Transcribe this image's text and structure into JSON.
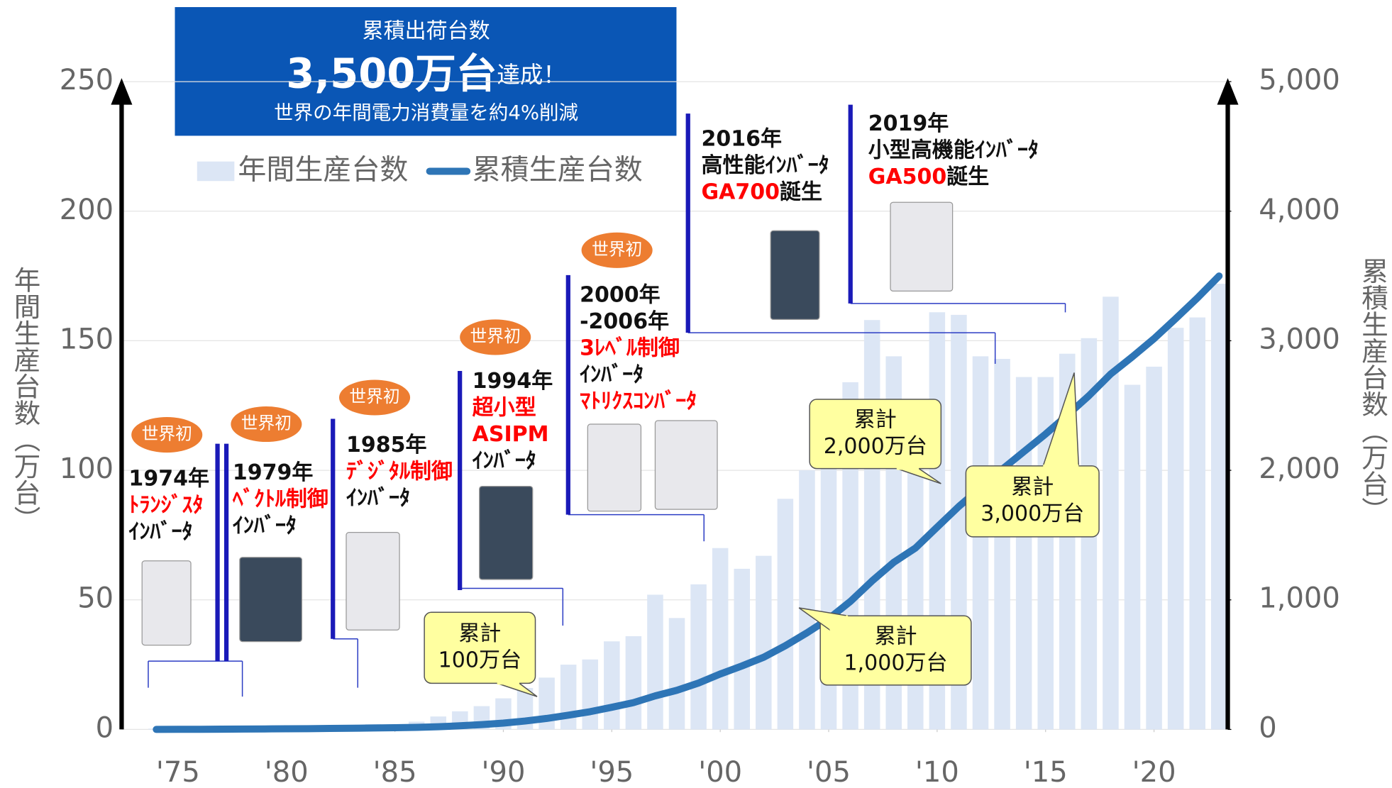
{
  "chart_data": {
    "type": "bar-line",
    "header": {
      "line1": "累積出荷台数",
      "big": "3,500万台",
      "big_tail": "達成！",
      "line3": "世界の年間電力消費量を約4%削減"
    },
    "ylabel": "年間生産台数（万台）",
    "y2label": "累積生産台数（万台）",
    "x": [
      1974,
      1975,
      1976,
      1977,
      1978,
      1979,
      1980,
      1981,
      1982,
      1983,
      1984,
      1985,
      1986,
      1987,
      1988,
      1989,
      1990,
      1991,
      1992,
      1993,
      1994,
      1995,
      1996,
      1997,
      1998,
      1999,
      2000,
      2001,
      2002,
      2003,
      2004,
      2005,
      2006,
      2007,
      2008,
      2009,
      2010,
      2011,
      2012,
      2013,
      2014,
      2015,
      2016,
      2017,
      2018,
      2019,
      2020,
      2021,
      2022,
      2023
    ],
    "xlim": [
      1972.4,
      2023.4
    ],
    "xticks": [
      {
        "value": 1975,
        "label": "'75"
      },
      {
        "value": 1980,
        "label": "'80"
      },
      {
        "value": 1985,
        "label": "'85"
      },
      {
        "value": 1990,
        "label": "'90"
      },
      {
        "value": 1995,
        "label": "'95"
      },
      {
        "value": 2000,
        "label": "'00"
      },
      {
        "value": 2005,
        "label": "'05"
      },
      {
        "value": 2010,
        "label": "'10"
      },
      {
        "value": 2015,
        "label": "'15"
      },
      {
        "value": 2020,
        "label": "'20"
      }
    ],
    "ylim": [
      0,
      250
    ],
    "yticks": [
      0,
      50,
      100,
      150,
      200,
      250
    ],
    "y2lim": [
      0,
      5000
    ],
    "y2ticks": [
      0,
      {
        "value": 1000,
        "label": "1,000"
      },
      {
        "value": 2000,
        "label": "2,000"
      },
      {
        "value": 3000,
        "label": "3,000"
      },
      {
        "value": 4000,
        "label": "4,000"
      },
      {
        "value": 5000,
        "label": "5,000"
      }
    ],
    "grid": true,
    "legend": "top-left",
    "series": [
      {
        "name": "年間生産台数",
        "color": "#dce6f5",
        "type": "bar",
        "values": [
          0.3,
          0.5,
          0.5,
          0.8,
          1,
          1,
          1,
          1.2,
          1.5,
          1.5,
          2,
          2,
          3,
          5,
          7,
          9,
          12,
          16,
          20,
          25,
          27,
          34,
          36,
          52,
          43,
          56,
          70,
          62,
          67,
          89,
          100,
          108,
          134,
          158,
          144,
          110,
          161,
          160,
          144,
          143,
          136,
          136,
          145,
          151,
          167,
          133,
          140,
          155,
          159,
          172
        ]
      },
      {
        "name": "累積生産台数",
        "color": "#2e75b6",
        "type": "line",
        "axis": "y2",
        "values": [
          0,
          1,
          1,
          2,
          3,
          4,
          5,
          6,
          8,
          9,
          11,
          13,
          16,
          21,
          28,
          37,
          49,
          65,
          85,
          110,
          137,
          171,
          207,
          259,
          302,
          358,
          428,
          490,
          557,
          646,
          746,
          854,
          988,
          1146,
          1290,
          1400,
          1561,
          1721,
          1865,
          2008,
          2144,
          2280,
          2425,
          2576,
          2743,
          2876,
          3016,
          3171,
          3330,
          3500
        ]
      }
    ],
    "milestones": [
      {
        "badge": "世界初",
        "lines": [
          {
            "text": "1974年"
          },
          {
            "text": "ﾄﾗﾝｼﾞｽﾀ",
            "color": "#ff0000"
          },
          {
            "text": "ｲﾝﾊﾞｰﾀ"
          }
        ]
      },
      {
        "badge": "世界初",
        "lines": [
          {
            "text": "1979年"
          },
          {
            "text": "ﾍﾞｸﾄﾙ制御",
            "color": "#ff0000"
          },
          {
            "text": "ｲﾝﾊﾞｰﾀ"
          }
        ]
      },
      {
        "badge": "世界初",
        "lines": [
          {
            "text": "1985年"
          },
          {
            "text": "ﾃﾞｼﾞﾀﾙ制御",
            "color": "#ff0000"
          },
          {
            "text": "ｲﾝﾊﾞｰﾀ"
          }
        ]
      },
      {
        "badge": "世界初",
        "lines": [
          {
            "text": "1994年"
          },
          {
            "text": "超小型",
            "color": "#ff0000"
          },
          {
            "text": "ASIPM",
            "color": "#ff0000"
          },
          {
            "text": "ｲﾝﾊﾞｰﾀ"
          }
        ]
      },
      {
        "badge": "世界初",
        "lines": [
          {
            "text": "2000年"
          },
          {
            "text": "-2006年"
          },
          {
            "text": "3ﾚﾍﾞﾙ制御",
            "color": "#ff0000"
          },
          {
            "text": "ｲﾝﾊﾞｰﾀ"
          },
          {
            "text": "ﾏﾄﾘｸｽｺﾝﾊﾞｰﾀ",
            "color": "#ff0000"
          }
        ]
      },
      {
        "lines": [
          {
            "text": "2016年"
          },
          {
            "text": "高性能ｲﾝﾊﾞｰﾀ"
          },
          {
            "text": "GA700",
            "color": "#ff0000",
            "tail": "誕生"
          }
        ]
      },
      {
        "lines": [
          {
            "text": "2019年"
          },
          {
            "text": "小型高機能ｲﾝﾊﾞｰﾀ"
          },
          {
            "text": "GA500",
            "color": "#ff0000",
            "tail": "誕生"
          }
        ]
      }
    ],
    "callouts": [
      {
        "lines": [
          "累計",
          "100万台"
        ]
      },
      {
        "lines": [
          "累計",
          "1,000万台"
        ]
      },
      {
        "lines": [
          "累計",
          "2,000万台"
        ]
      },
      {
        "lines": [
          "累計",
          "3,000万台"
        ]
      }
    ]
  }
}
